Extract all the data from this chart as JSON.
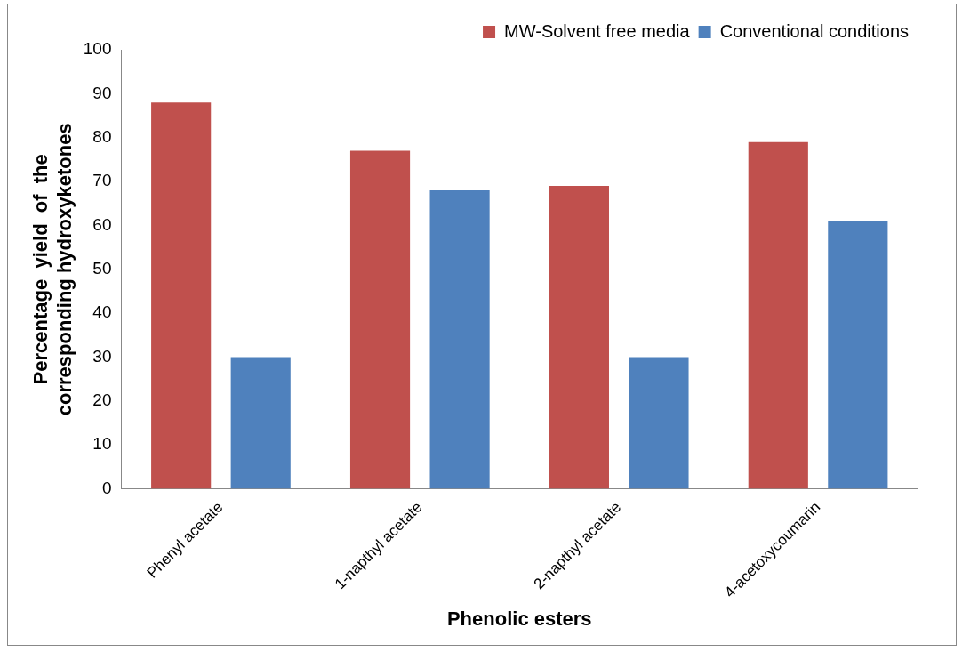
{
  "chart_data": {
    "type": "bar",
    "xlabel": "Phenolic esters",
    "ylabel": "Percentage  yield  of  the\ncorresponding hydroxyketones",
    "categories": [
      "Phenyl acetate",
      "1-napthyl acetate",
      "2-napthyl acetate",
      "4-acetoxycoumarin"
    ],
    "series": [
      {
        "name": "MW-Solvent free media",
        "color": "#c0504d",
        "values": [
          88,
          77,
          69,
          79
        ]
      },
      {
        "name": "Conventional conditions",
        "color": "#4f81bd",
        "values": [
          30,
          68,
          30,
          61
        ]
      }
    ],
    "ylim": [
      0,
      100
    ],
    "yticks": [
      0,
      10,
      20,
      30,
      40,
      50,
      60,
      70,
      80,
      90,
      100
    ],
    "grid": false,
    "legend": "top right"
  }
}
